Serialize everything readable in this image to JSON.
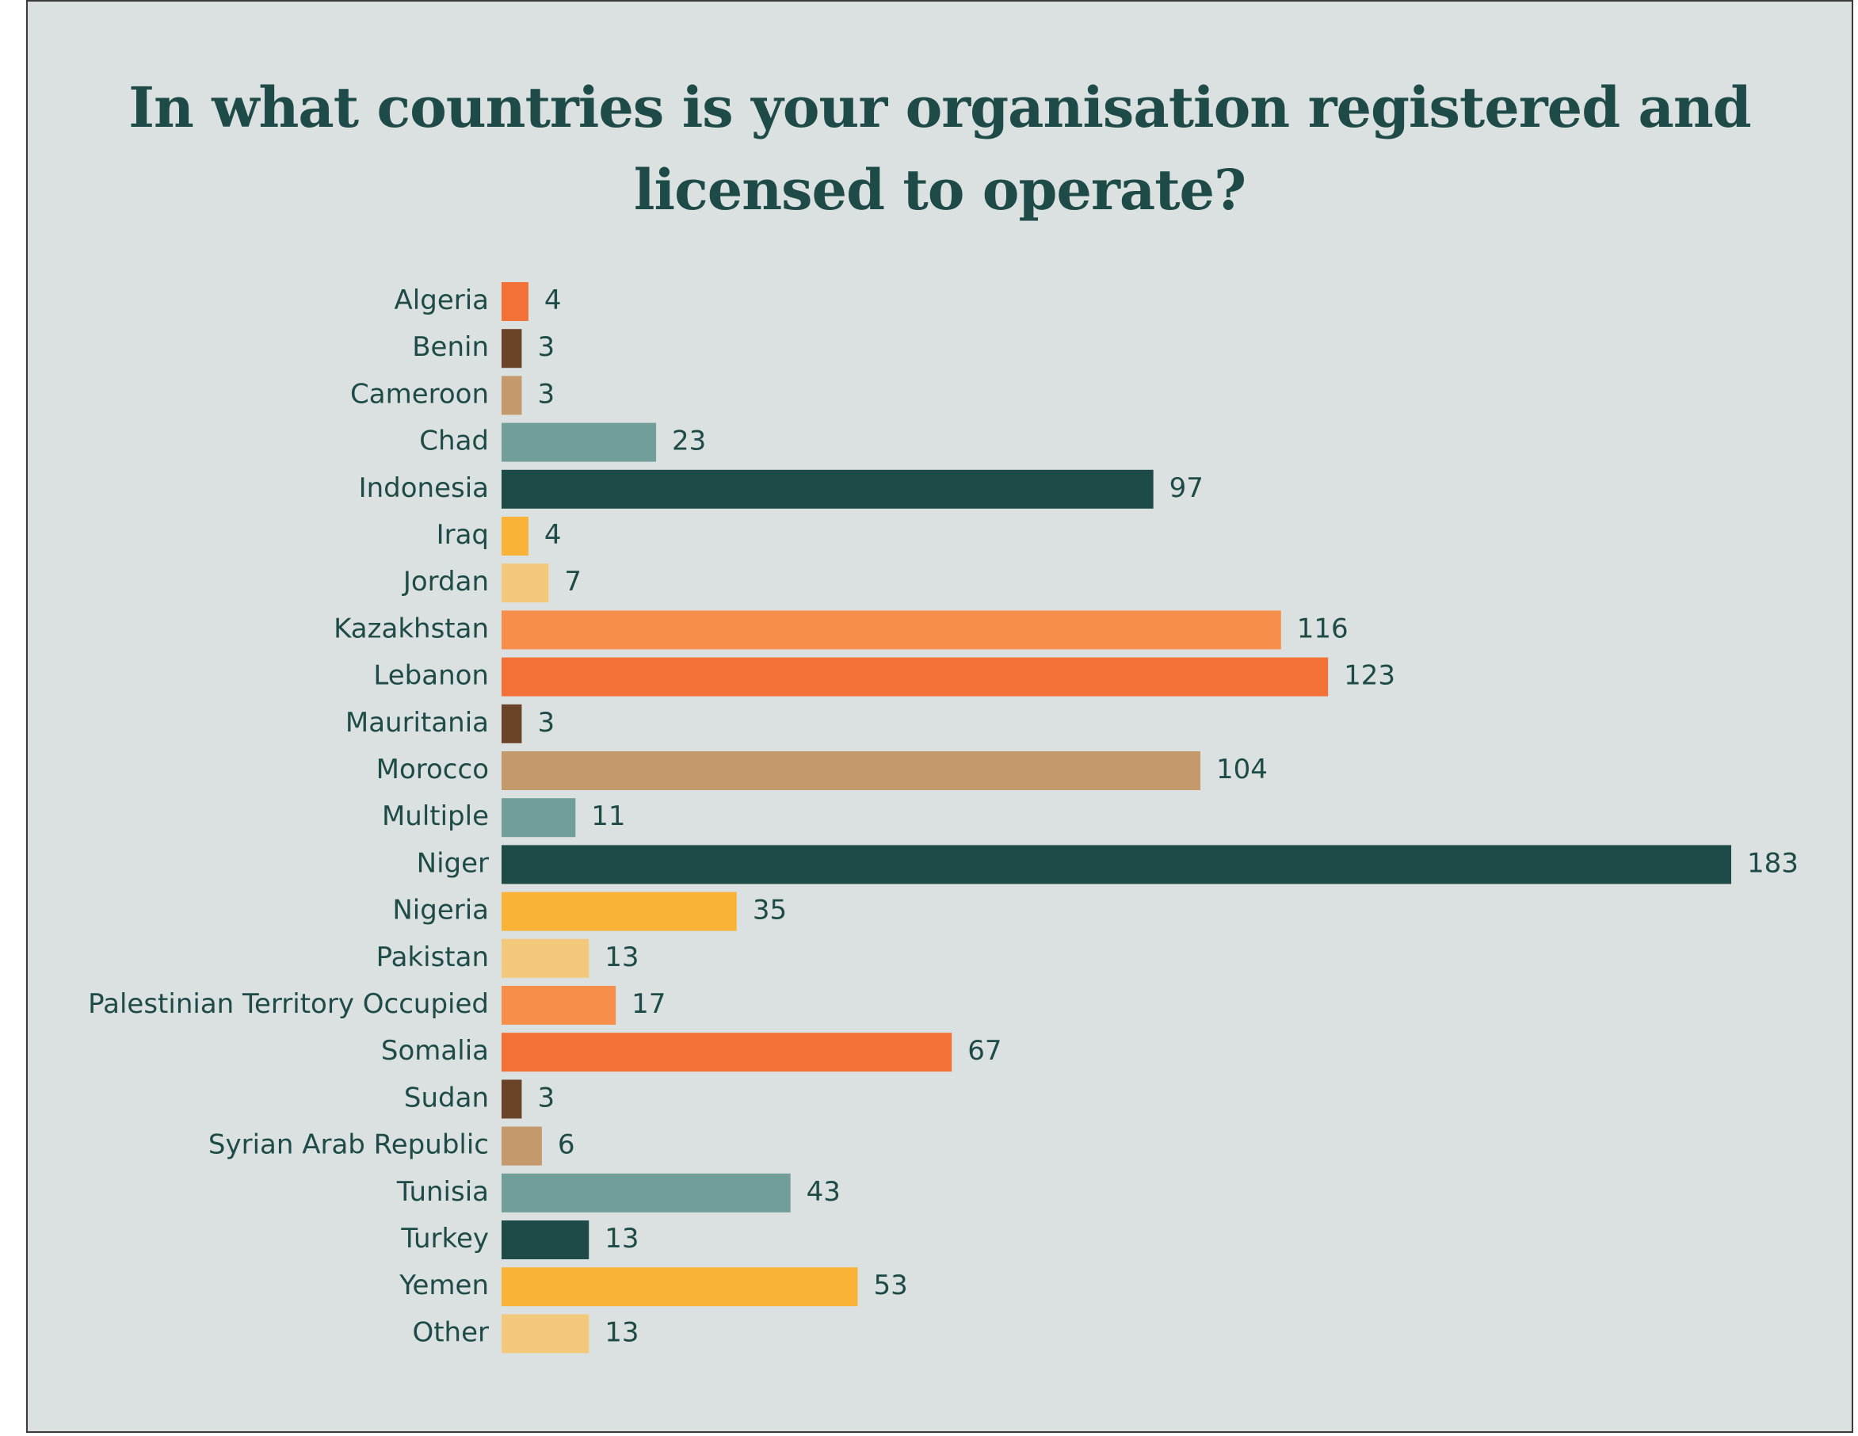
{
  "chart_data": {
    "type": "bar",
    "orientation": "horizontal",
    "title": "In what countries is your organisation registered and licensed to operate?",
    "title_lines": [
      "In what countries is your organisation registered and",
      "licensed to operate?"
    ],
    "categories": [
      "Algeria",
      "Benin",
      "Cameroon",
      "Chad",
      "Indonesia",
      "Iraq",
      "Jordan",
      "Kazakhstan",
      "Lebanon",
      "Mauritania",
      "Morocco",
      "Multiple",
      "Niger",
      "Nigeria",
      "Pakistan",
      "Palestinian Territory Occupied",
      "Somalia",
      "Sudan",
      "Syrian Arab Republic",
      "Tunisia",
      "Turkey",
      "Yemen",
      "Other"
    ],
    "values": [
      4,
      3,
      3,
      23,
      97,
      4,
      7,
      116,
      123,
      3,
      104,
      11,
      183,
      35,
      13,
      17,
      67,
      3,
      6,
      43,
      13,
      53,
      13
    ],
    "value_labels": [
      "4",
      "3",
      "3",
      "23",
      "97",
      "4",
      "7",
      "116",
      "123",
      "3",
      "104",
      "11",
      "183",
      "35",
      "13",
      "17",
      "67",
      "3",
      "6",
      "43",
      "13",
      "53",
      "13"
    ],
    "colors": [
      "#f37036",
      "#6b4328",
      "#c49a6c",
      "#729e99",
      "#1e4b48",
      "#fab237",
      "#f2c97b",
      "#f78f4a",
      "#f37036",
      "#6b4328",
      "#c49a6c",
      "#729e99",
      "#1e4b48",
      "#fab237",
      "#f2c97b",
      "#f78f4a",
      "#f37036",
      "#6b4328",
      "#c49a6c",
      "#729e99",
      "#1e4b48",
      "#fab237",
      "#f2c97b"
    ],
    "xlim": [
      0,
      183
    ],
    "grid": false,
    "legend": "none",
    "background": "#dbe0e0",
    "text_color": "#1e4b48"
  }
}
